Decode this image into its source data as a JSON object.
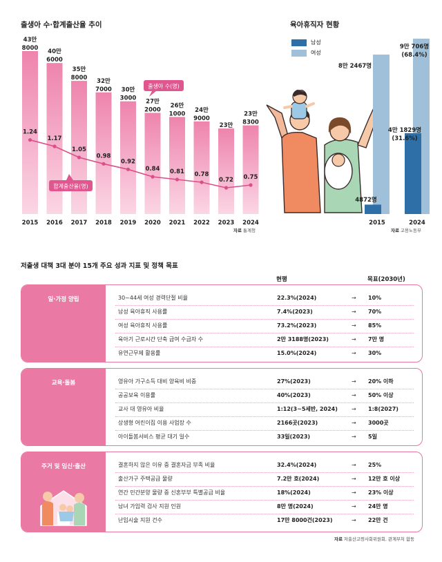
{
  "births_chart": {
    "title": "출생아 수·합계출산율 추이",
    "source_label": "자료",
    "source": "통계청",
    "series_bar_label": "출생아 수(명)",
    "series_line_label": "합계출산율(명)",
    "colors": {
      "bar_top": "#ee84ad",
      "bar_bottom": "#fbd4e3",
      "line": "#d94f88",
      "tag": "#e0568f"
    }
  },
  "leave_chart": {
    "title": "육아휴직자 현황",
    "source_label": "자료",
    "source": "고용노동부",
    "legend_male": "남성",
    "legend_female": "여성",
    "colors": {
      "male": "#2e6fa7",
      "female": "#9fc0d8"
    }
  },
  "chart_data": [
    {
      "type": "bar",
      "title": "출생아 수·합계출산율 추이",
      "categories": [
        "2015",
        "2016",
        "2017",
        "2018",
        "2019",
        "2020",
        "2021",
        "2022",
        "2023",
        "2024"
      ],
      "series": [
        {
          "name": "출생아 수(명)",
          "type": "bar",
          "values": [
            438000,
            406000,
            358000,
            327000,
            303000,
            272000,
            261000,
            249000,
            230000,
            238300
          ],
          "labels": [
            "43만\n8000",
            "40만\n6000",
            "35만\n8000",
            "32만\n7000",
            "30만\n3000",
            "27만\n2000",
            "26만\n1000",
            "24만\n9000",
            "23만",
            "23만\n8300"
          ]
        },
        {
          "name": "합계출산율(명)",
          "type": "line",
          "values": [
            1.24,
            1.17,
            1.05,
            0.98,
            0.92,
            0.84,
            0.81,
            0.78,
            0.72,
            0.75
          ],
          "labels": [
            "1.24",
            "1.17",
            "1.05",
            "0.98",
            "0.92",
            "0.84",
            "0.81",
            "0.78",
            "0.72",
            "0.75"
          ]
        }
      ],
      "ylim_bar": [
        0,
        438000
      ],
      "ylim_line": [
        0.6,
        1.35
      ]
    },
    {
      "type": "bar",
      "title": "육아휴직자 현황",
      "categories": [
        "2015",
        "2024"
      ],
      "series": [
        {
          "name": "남성",
          "values": [
            4872,
            41829
          ],
          "labels": [
            "4872명",
            "4만 1829명\n(31.6%)"
          ]
        },
        {
          "name": "여성",
          "values": [
            82467,
            90706
          ],
          "labels": [
            "8만 2467명",
            "9만 706명\n(68.4%)"
          ]
        }
      ],
      "ylim": [
        0,
        90706
      ]
    }
  ],
  "policy": {
    "title": "저출생 대책 3대 분야 15개 주요 성과 지표 및 정책 목표",
    "col_current": "현행",
    "col_target": "목표(2030년)",
    "arrow": "→",
    "source_label": "자료",
    "source": "저출산고령사회위원회, 관계부처 합동",
    "categories": [
      {
        "name": "일·가정 양립",
        "rows": [
          {
            "label": "30~44세 여성 경력단절 비율",
            "current": "22.3%(2024)",
            "target": "10%"
          },
          {
            "label": "남성 육아휴직 사용률",
            "current": "7.4%(2023)",
            "target": "70%"
          },
          {
            "label": "여성 육아휴직 사용률",
            "current": "73.2%(2023)",
            "target": "85%"
          },
          {
            "label": "육아기 근로시간 단축 급여 수급자 수",
            "current": "2만 3188명(2023)",
            "target": "7만 명"
          },
          {
            "label": "유연근무제 활용률",
            "current": "15.0%(2024)",
            "target": "30%"
          }
        ]
      },
      {
        "name": "교육·돌봄",
        "rows": [
          {
            "label": "영유아 가구소득 대비 양육비 비중",
            "current": "27%(2023)",
            "target": "20% 이하"
          },
          {
            "label": "공공보육 이용률",
            "current": "40%(2023)",
            "target": "50% 이상"
          },
          {
            "label": "교사 대 영유아 비율",
            "current": "1:12(3~5세반, 2024)",
            "target": "1:8(2027)"
          },
          {
            "label": "상생형 어린이집 이용 사업장 수",
            "current": "2166곳(2023)",
            "target": "3000곳"
          },
          {
            "label": "아이돌봄서비스 평균 대기 일수",
            "current": "33일(2023)",
            "target": "5일"
          }
        ]
      },
      {
        "name": "주거 및 임신·출산",
        "rows": [
          {
            "label": "결혼하지 않은 이유 중 결혼자금 부족 비율",
            "current": "32.4%(2024)",
            "target": "25%"
          },
          {
            "label": "출산가구 주택공급 물량",
            "current": "7.2만 호(2024)",
            "target": "12만 호 이상"
          },
          {
            "label": "연간 민간분양 물량 중 신혼부부 특별공급 비율",
            "current": "18%(2024)",
            "target": "23% 이상"
          },
          {
            "label": "남녀 가임력 검사 지원 인원",
            "current": "8만 명(2024)",
            "target": "24만 명"
          },
          {
            "label": "난임시술 지원 건수",
            "current": "17만 8000건(2023)",
            "target": "22만 건"
          }
        ]
      }
    ]
  }
}
